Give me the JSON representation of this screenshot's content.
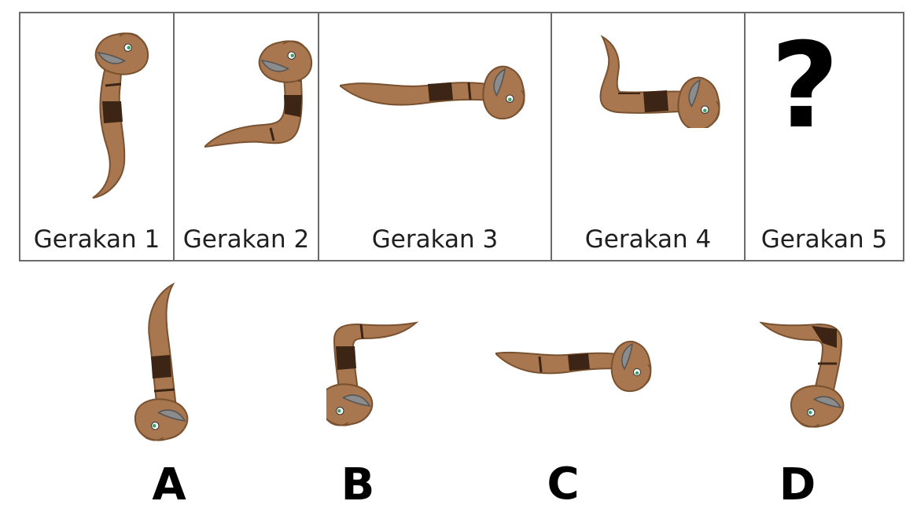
{
  "panels": [
    {
      "label": "Gerakan 1"
    },
    {
      "label": "Gerakan 2"
    },
    {
      "label": "Gerakan 3"
    },
    {
      "label": "Gerakan 4"
    },
    {
      "label": "Gerakan 5",
      "symbol": "?"
    }
  ],
  "options": [
    {
      "label": "A"
    },
    {
      "label": "B"
    },
    {
      "label": "C"
    },
    {
      "label": "D"
    }
  ],
  "colors": {
    "snake_body": "#a8774f",
    "snake_band": "#3d2515",
    "snake_outline": "#7a5230",
    "mouth": "#8c8c8c",
    "eye": "#3fa06a",
    "border": "#6b6b6b"
  }
}
